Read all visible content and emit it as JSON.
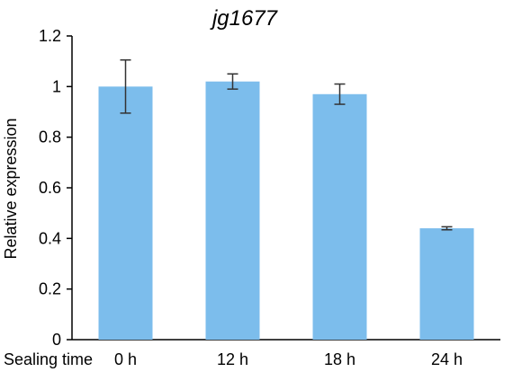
{
  "chart_data": {
    "type": "bar",
    "title": "jg1677",
    "xlabel": "Sealing time",
    "ylabel": "Relative expression",
    "categories": [
      "0 h",
      "12 h",
      "18 h",
      "24 h"
    ],
    "series": [
      {
        "values": [
          1.0,
          1.02,
          0.97,
          0.44
        ],
        "error": [
          0.105,
          0.03,
          0.04,
          0.006
        ]
      }
    ],
    "ylim": [
      0,
      1.2
    ],
    "yticks": [
      0,
      0.2,
      0.4,
      0.6,
      0.8,
      1,
      1.2
    ],
    "ytick_labels": [
      "0",
      "0.2",
      "0.4",
      "0.6",
      "0.8",
      "1",
      "1.2"
    ],
    "grid": false,
    "legend": "none",
    "colors": {
      "bar": "#7cbdec",
      "error_bar": "#333333",
      "axis": "#000000"
    }
  }
}
